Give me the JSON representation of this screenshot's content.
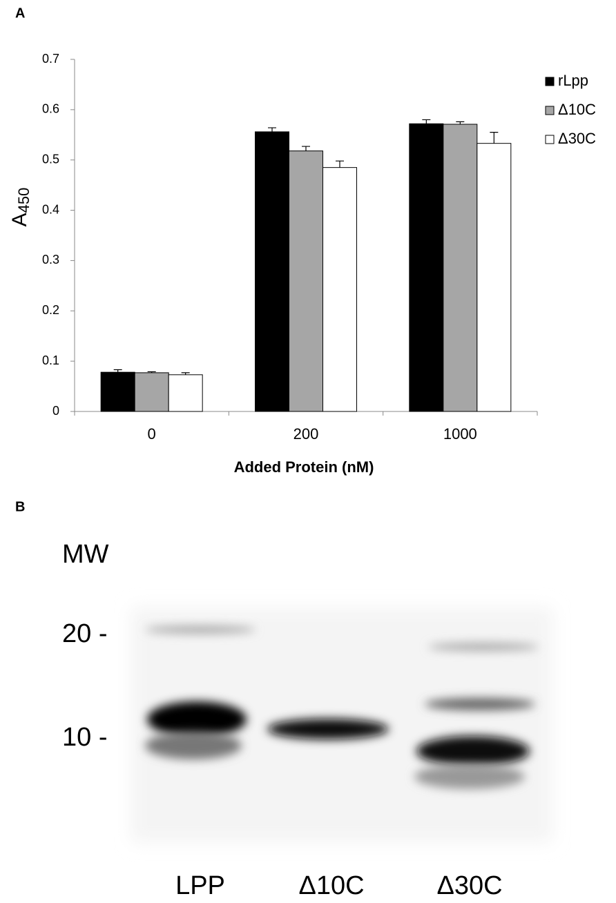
{
  "chart_data": {
    "type": "bar",
    "panel_label": "A",
    "x_label": "Added Protein (nM)",
    "y_label": "A",
    "y_label_sub": "450",
    "categories": [
      "0",
      "200",
      "1000"
    ],
    "series": [
      {
        "name": "rLpp",
        "color": "#000000",
        "values": [
          0.078,
          0.556,
          0.572
        ],
        "errors": [
          0.005,
          0.008,
          0.008
        ]
      },
      {
        "name": "Δ10C",
        "color": "#a6a6a6",
        "values": [
          0.077,
          0.518,
          0.571
        ],
        "errors": [
          0.002,
          0.009,
          0.005
        ]
      },
      {
        "name": "Δ30C",
        "color": "#ffffff",
        "values": [
          0.073,
          0.485,
          0.533
        ],
        "errors": [
          0.004,
          0.013,
          0.022
        ]
      }
    ],
    "ylim": [
      0,
      0.7
    ],
    "yticks": [
      0,
      0.1,
      0.2,
      0.3,
      0.4,
      0.5,
      0.6,
      0.7
    ],
    "grid": false,
    "legend": "right"
  },
  "blot": {
    "panel_label": "B",
    "mw_label": "MW",
    "markers": [
      "20 -",
      "10 -"
    ],
    "lanes": [
      "LPP",
      "Δ10C",
      "Δ30C"
    ]
  }
}
